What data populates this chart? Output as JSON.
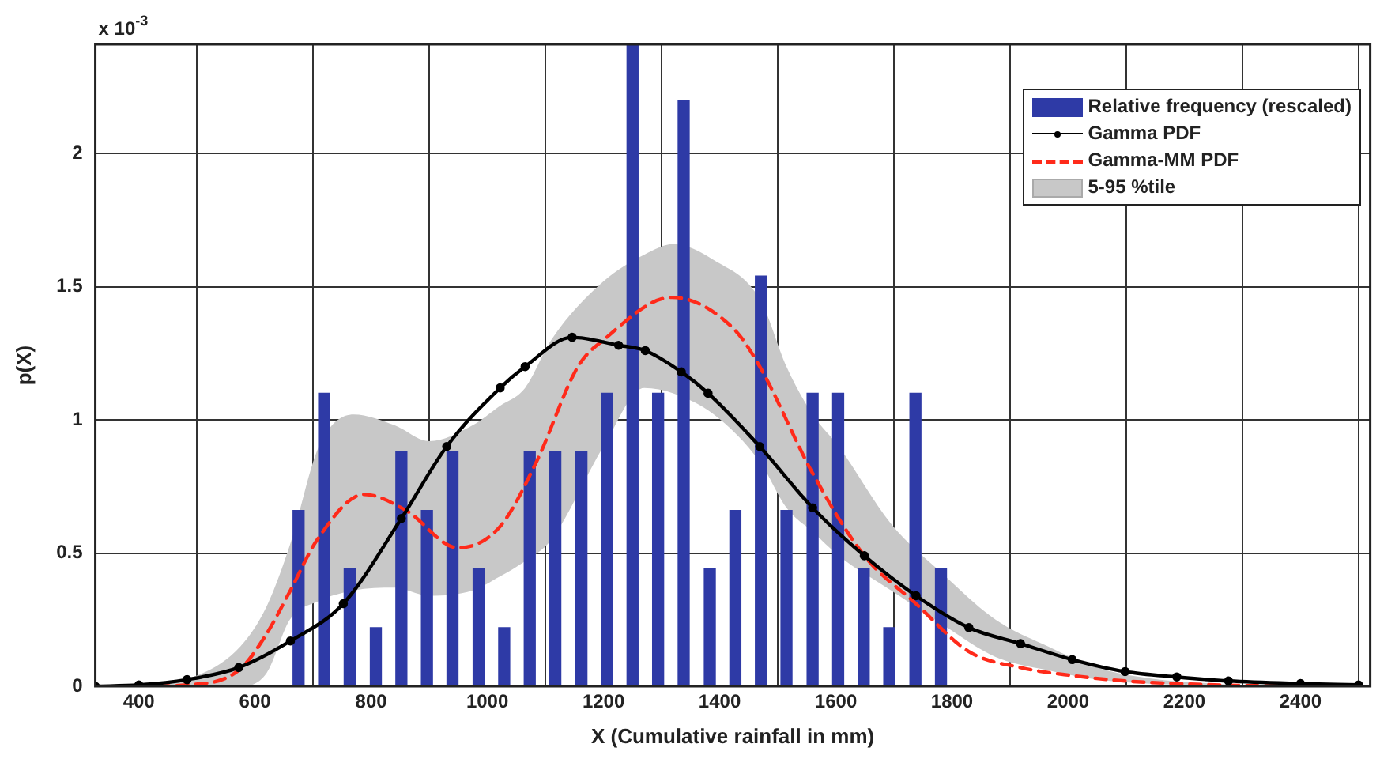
{
  "chart_data": {
    "type": "line",
    "xlabel": "X (Cumulative rainfall in mm)",
    "ylabel": "p(X)",
    "annotations": [
      "x 10$^{-3}$"
    ],
    "xlim": [
      325,
      2520
    ],
    "xticks": [
      400,
      600,
      800,
      1000,
      1200,
      1400,
      1600,
      1800,
      2000,
      2200,
      2400
    ],
    "ylim": [
      0,
      2.41
    ],
    "yticks": [
      0,
      0.5,
      1,
      1.5,
      2
    ],
    "grid": true,
    "legend": "top right",
    "series": [
      {
        "name": "Relative frequency (rescaled)",
        "type": "bar",
        "color": "#2e3aa6",
        "x": [
          675,
          719,
          763,
          808,
          852,
          896,
          940,
          985,
          1029,
          1073,
          1117,
          1162,
          1206,
          1250,
          1294,
          1338,
          1383,
          1427,
          1471,
          1515,
          1560,
          1604,
          1648,
          1692,
          1737,
          1781
        ],
        "values": [
          0.66,
          1.1,
          0.44,
          0.22,
          0.88,
          0.66,
          0.88,
          0.44,
          0.22,
          0.88,
          0.88,
          0.88,
          1.1,
          2.41,
          1.1,
          2.2,
          0.44,
          0.66,
          1.54,
          0.66,
          1.1,
          1.1,
          0.44,
          0.22,
          1.1,
          0.44
        ]
      },
      {
        "name": "Gamma PDF",
        "color": "#000000",
        "marker": "circle",
        "line_style": "solid",
        "x": [
          325,
          400,
          483,
          572,
          661,
          752,
          852,
          930,
          1022,
          1065,
          1146,
          1226,
          1272,
          1334,
          1380,
          1469,
          1560,
          1649,
          1738,
          1829,
          1918,
          2007,
          2098,
          2187,
          2276,
          2400,
          2500
        ],
        "values": [
          0,
          0.005,
          0.025,
          0.07,
          0.17,
          0.31,
          0.63,
          0.9,
          1.12,
          1.2,
          1.31,
          1.28,
          1.26,
          1.18,
          1.1,
          0.9,
          0.67,
          0.49,
          0.34,
          0.22,
          0.16,
          0.1,
          0.055,
          0.035,
          0.02,
          0.01,
          0.005
        ]
      },
      {
        "name": "Gamma-MM PDF",
        "color": "#ff2a1a",
        "marker": "none",
        "line_style": "dashed",
        "x": [
          400,
          483,
          572,
          618,
          661,
          707,
          788,
          860,
          949,
          1022,
          1084,
          1156,
          1200,
          1318,
          1425,
          1469,
          1560,
          1649,
          1738,
          1829,
          1918,
          2007,
          2098,
          2187,
          2300,
          2450
        ],
        "values": [
          0,
          0.005,
          0.06,
          0.19,
          0.36,
          0.55,
          0.72,
          0.66,
          0.52,
          0.6,
          0.84,
          1.2,
          1.3,
          1.46,
          1.34,
          1.2,
          0.8,
          0.49,
          0.31,
          0.13,
          0.07,
          0.04,
          0.02,
          0.01,
          0.003,
          0
        ]
      },
      {
        "name": "5-95 %tile",
        "type": "area",
        "color": "#c8c8c8",
        "x": [
          400,
          500,
          575,
          620,
          660,
          710,
          770,
          840,
          900,
          975,
          1020,
          1065,
          1110,
          1200,
          1270,
          1320,
          1390,
          1470,
          1515,
          1560,
          1605,
          1695,
          1785,
          1875,
          1965,
          2050,
          2140,
          2250,
          2350
        ],
        "values": [
          null,
          null,
          null,
          null,
          null,
          null,
          null,
          null,
          null,
          null,
          null,
          null,
          null,
          null,
          null,
          null,
          null,
          null,
          null,
          null,
          null,
          null,
          null,
          null,
          null,
          null,
          null,
          null,
          null
        ],
        "lower": [
          0,
          0,
          0,
          0.05,
          0.25,
          0.32,
          0.36,
          0.37,
          0.34,
          0.36,
          0.41,
          0.47,
          0.55,
          0.9,
          1.12,
          1.1,
          1.02,
          0.84,
          0.67,
          0.58,
          0.49,
          0.36,
          0.23,
          0.11,
          0.06,
          0.025,
          0.01,
          0.005,
          0
        ],
        "upper": [
          0.01,
          0.04,
          0.15,
          0.3,
          0.53,
          0.9,
          1.02,
          0.98,
          0.92,
          0.98,
          1.05,
          1.12,
          1.3,
          1.52,
          1.62,
          1.66,
          1.6,
          1.45,
          1.2,
          1.02,
          0.9,
          0.61,
          0.42,
          0.25,
          0.15,
          0.07,
          0.03,
          0.01,
          0
        ]
      }
    ]
  }
}
